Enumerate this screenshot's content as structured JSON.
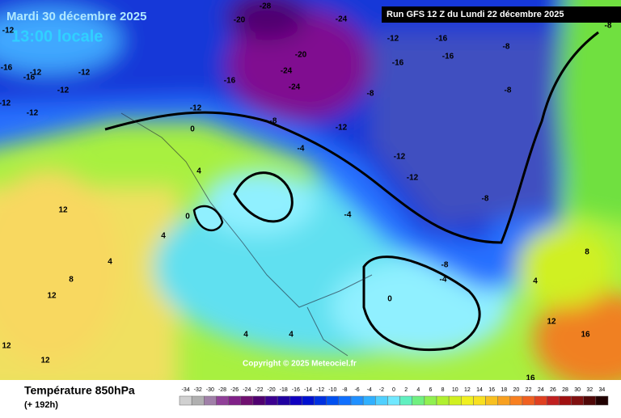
{
  "header": {
    "title": "Mardi 30 décembre 2025",
    "subtitle": "13:00 locale",
    "run": "Run GFS 12 Z du Lundi 22 décembre 2025"
  },
  "map": {
    "copyright": "Copyright © 2025 Meteociel.fr",
    "labels": [
      "-12",
      "-16",
      "-12",
      "-16",
      "-12",
      "-12",
      "-12",
      "-12",
      "-20",
      "-24",
      "-28",
      "-24",
      "-20",
      "-24",
      "-12",
      "-16",
      "-16",
      "-16",
      "-8",
      "-8",
      "-12",
      "-12",
      "-16",
      "-8",
      "0",
      "-4",
      "-12",
      "-12",
      "-8",
      "-8",
      "4",
      "12",
      "0",
      "4",
      "4",
      "8",
      "12",
      "-4",
      "-8",
      "-4",
      "0",
      "4",
      "4",
      "12",
      "12",
      "16",
      "16",
      "12",
      "8",
      "4",
      "-8"
    ]
  },
  "footer": {
    "title": "Température 850hPa",
    "lead": "(+ 192h)"
  },
  "legend": {
    "labels": [
      "-34",
      "-32",
      "-30",
      "-28",
      "-26",
      "-24",
      "-22",
      "-20",
      "-18",
      "-16",
      "-14",
      "-12",
      "-10",
      "-8",
      "-6",
      "-4",
      "-2",
      "0",
      "2",
      "4",
      "6",
      "8",
      "10",
      "12",
      "14",
      "16",
      "18",
      "20",
      "22",
      "24",
      "26",
      "28",
      "30",
      "32",
      "34"
    ],
    "colors": [
      "#d0d0d0",
      "#b0b0b0",
      "#a080a8",
      "#904098",
      "#802088",
      "#701070",
      "#500070",
      "#3c0090",
      "#2000a0",
      "#1000c0",
      "#0010d0",
      "#0030e0",
      "#0050f0",
      "#1070ff",
      "#2090ff",
      "#30b0ff",
      "#50d0ff",
      "#70e8ff",
      "#60f0c0",
      "#70f080",
      "#90f050",
      "#b0f030",
      "#d0f020",
      "#f0f020",
      "#f8e020",
      "#f8c020",
      "#f8a020",
      "#f88020",
      "#f06020",
      "#e04020",
      "#c02020",
      "#a01010",
      "#801010",
      "#500808",
      "#200000"
    ]
  }
}
